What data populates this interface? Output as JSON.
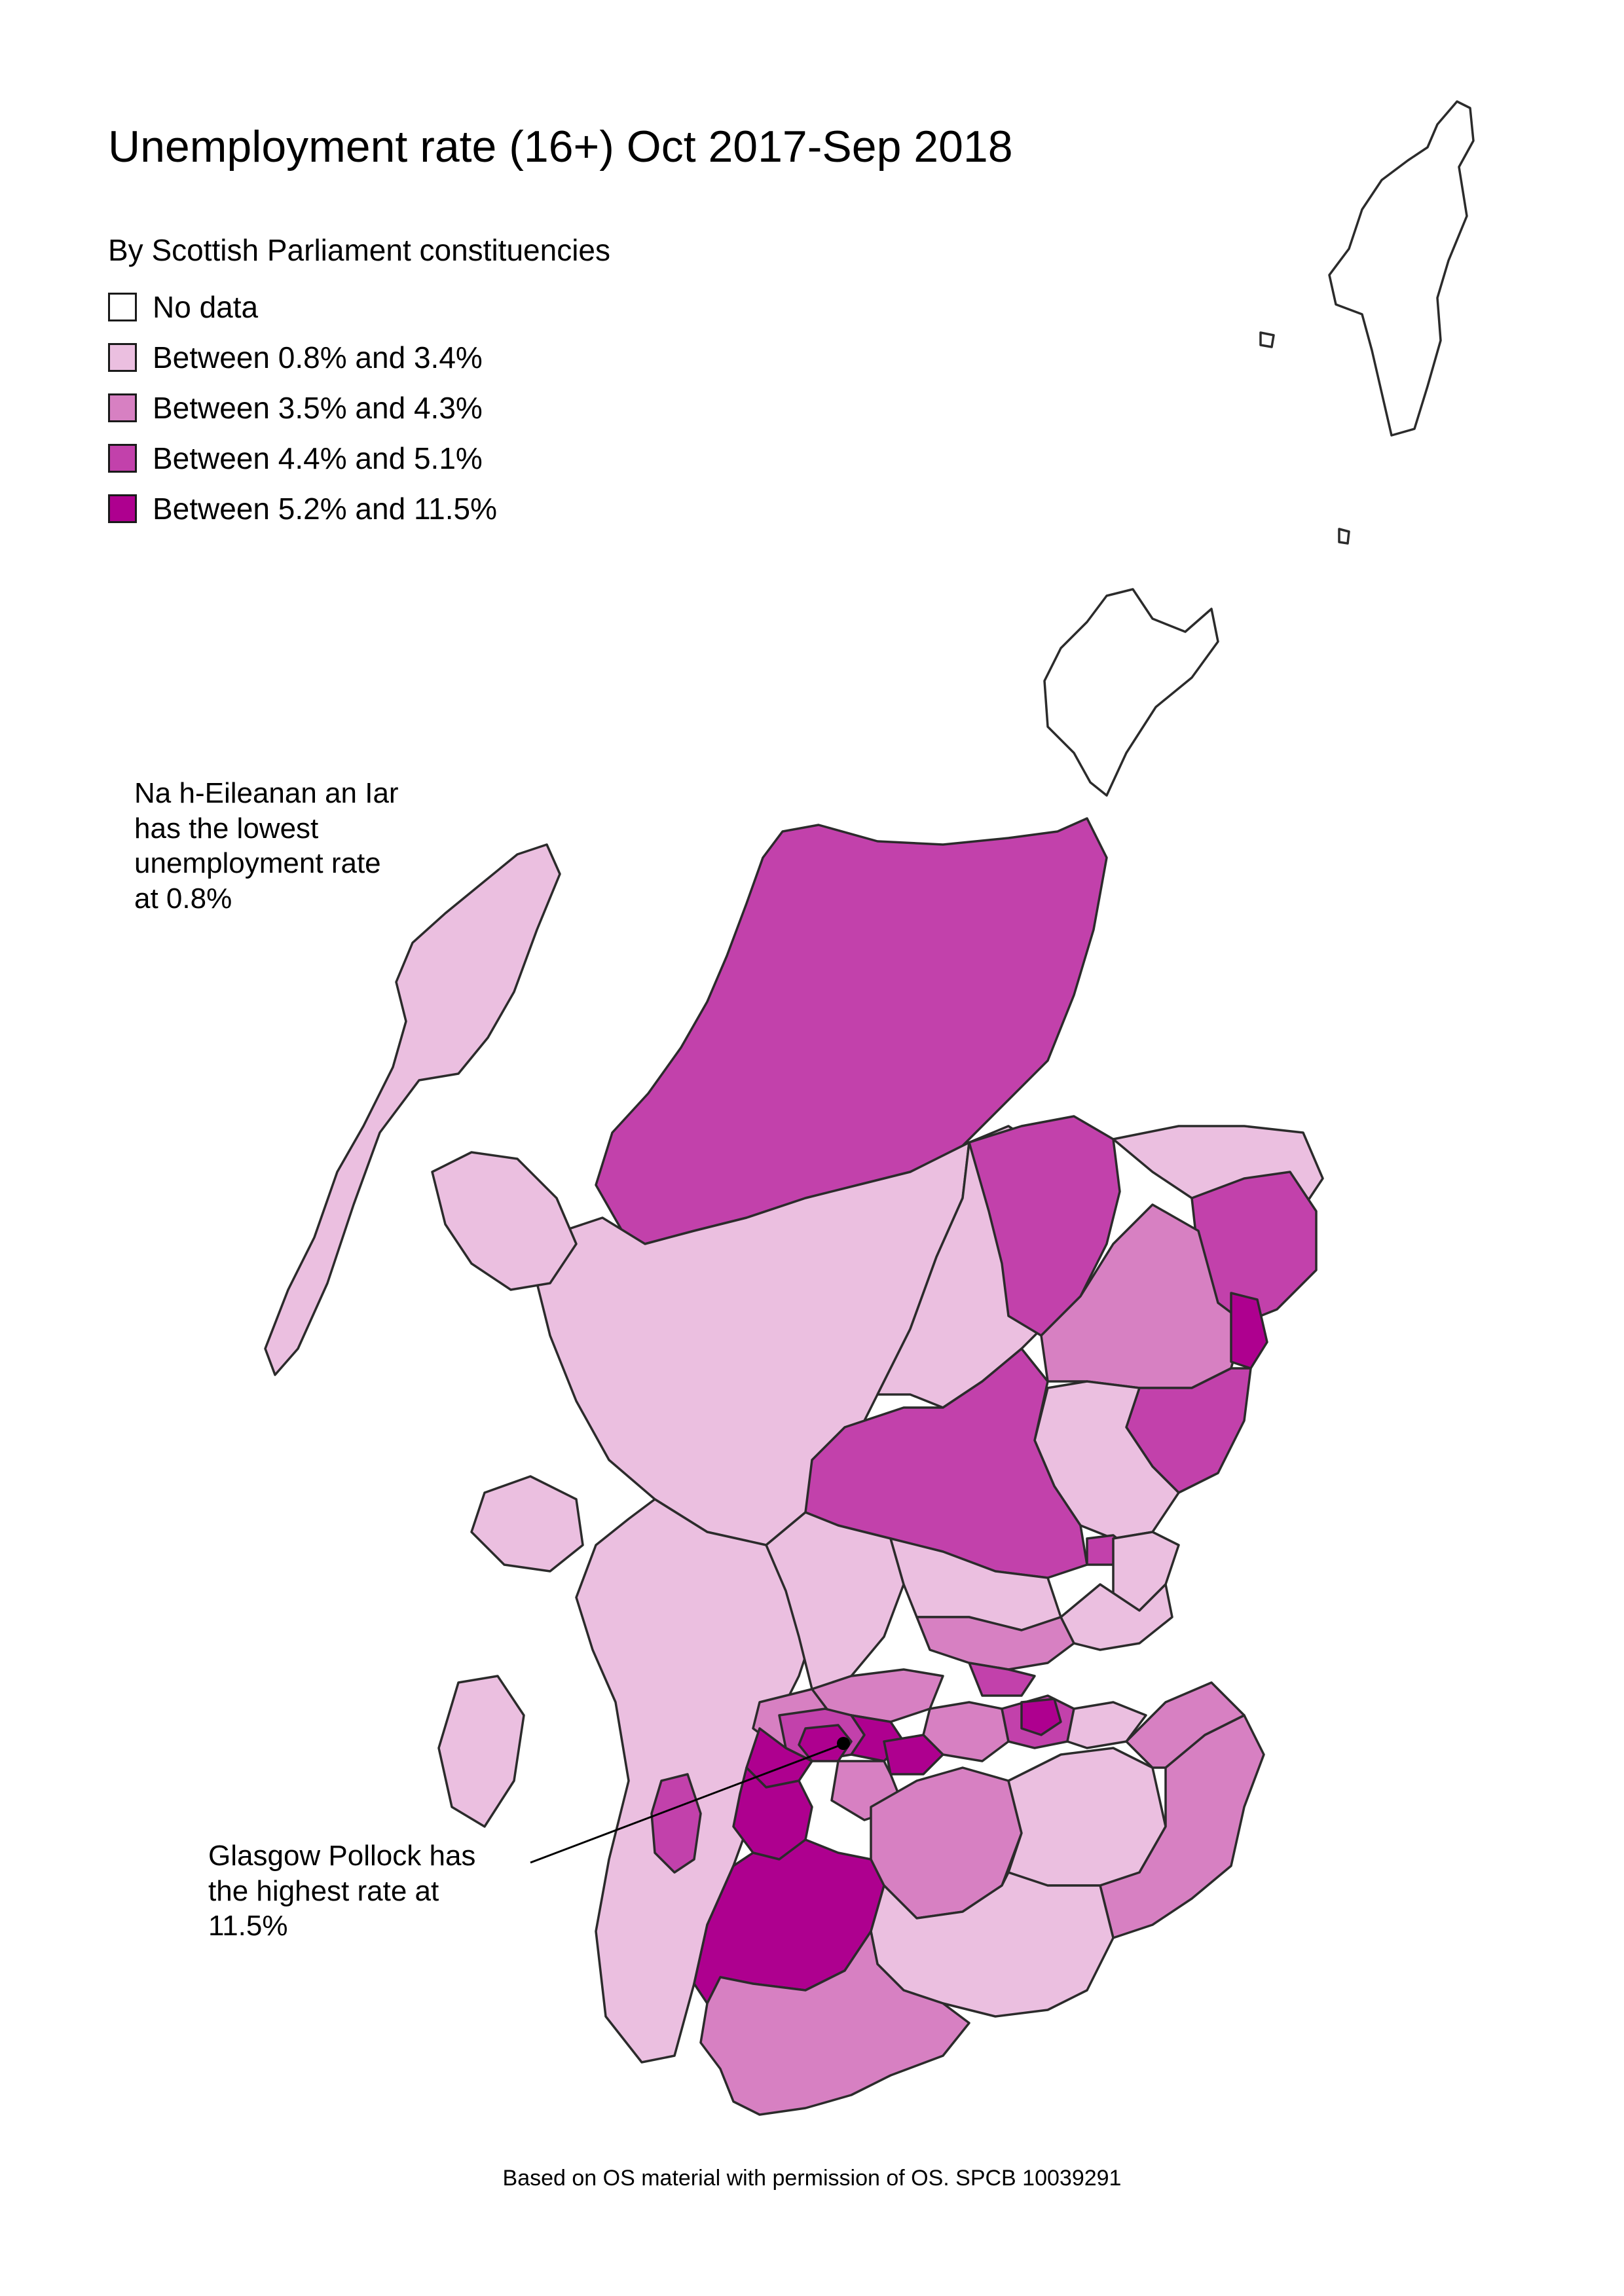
{
  "title": "Unemployment rate (16+) Oct 2017-Sep 2018",
  "subtitle": "By Scottish Parliament constituencies",
  "legend": [
    {
      "label": "No data",
      "color": "#ffffff"
    },
    {
      "label": "Between 0.8% and 3.4%",
      "color": "#ebbfe0"
    },
    {
      "label": "Between 3.5% and 4.3%",
      "color": "#d780c2"
    },
    {
      "label": "Between 4.4% and 5.1%",
      "color": "#c241ab"
    },
    {
      "label": "Between 5.2% and 11.5%",
      "color": "#ae008f"
    }
  ],
  "annotations": {
    "lowest": [
      "Na h-Eileanan an Iar",
      "has the lowest",
      "unemployment rate",
      "at 0.8%"
    ],
    "highest": [
      "Glasgow Pollock has",
      "the highest rate at",
      "11.5%"
    ]
  },
  "footer": "Based on OS material with permission of OS. SPCB 10039291",
  "colors": {
    "outline": "#2b2b2b",
    "no_data": "#ffffff",
    "band1": "#ebbfe0",
    "band2": "#d780c2",
    "band3": "#c241ab",
    "band4": "#ae008f"
  }
}
